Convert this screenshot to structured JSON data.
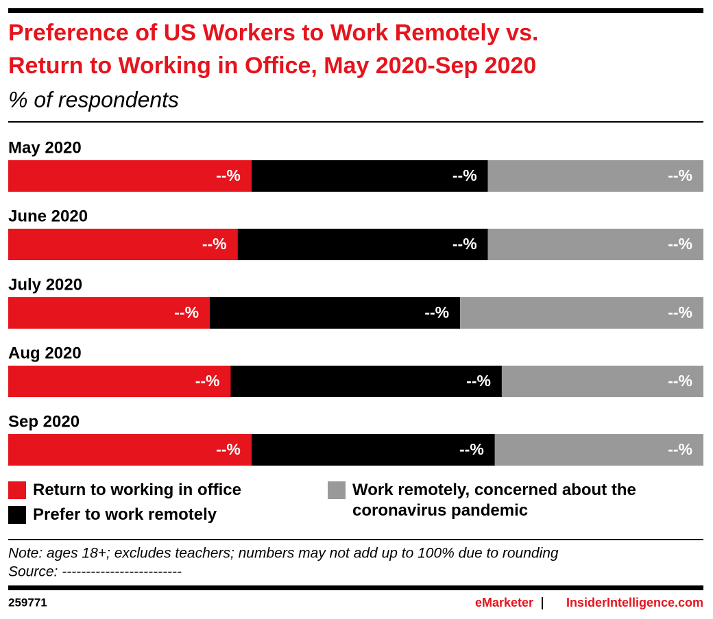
{
  "chart_data": {
    "type": "stacked-bar-100",
    "title": "Preference of US Workers to Work Remotely vs.",
    "title_line2": "Return to Working in Office, May 2020-Sep 2020",
    "subtitle": "% of respondents",
    "categories": [
      "May 2020",
      "June 2020",
      "July 2020",
      "Aug 2020",
      "Sep 2020"
    ],
    "xlim": [
      0,
      100
    ],
    "series": [
      {
        "name": "Return to working in office",
        "color": "#e5141d",
        "values": [
          35,
          33,
          29,
          32,
          35
        ],
        "value_labels": [
          "--%",
          "--%",
          "--%",
          "--%",
          "--%"
        ]
      },
      {
        "name": "Prefer to work remotely",
        "color": "#000000",
        "values": [
          34,
          36,
          36,
          39,
          35
        ],
        "value_labels": [
          "--%",
          "--%",
          "--%",
          "--%",
          "--%"
        ]
      },
      {
        "name": "Work remotely, concerned about the coronavirus pandemic",
        "color": "#999999",
        "values": [
          31,
          31,
          35,
          29,
          30
        ],
        "value_labels": [
          "--%",
          "--%",
          "--%",
          "--%",
          "--%"
        ]
      }
    ],
    "note": "Note: ages 18+; excludes teachers; numbers may not add up to 100% due to rounding",
    "source": "Source: -------------------------",
    "chart_id": "259771",
    "brand": "eMarketer",
    "brand_site": "InsiderIntelligence.com"
  }
}
